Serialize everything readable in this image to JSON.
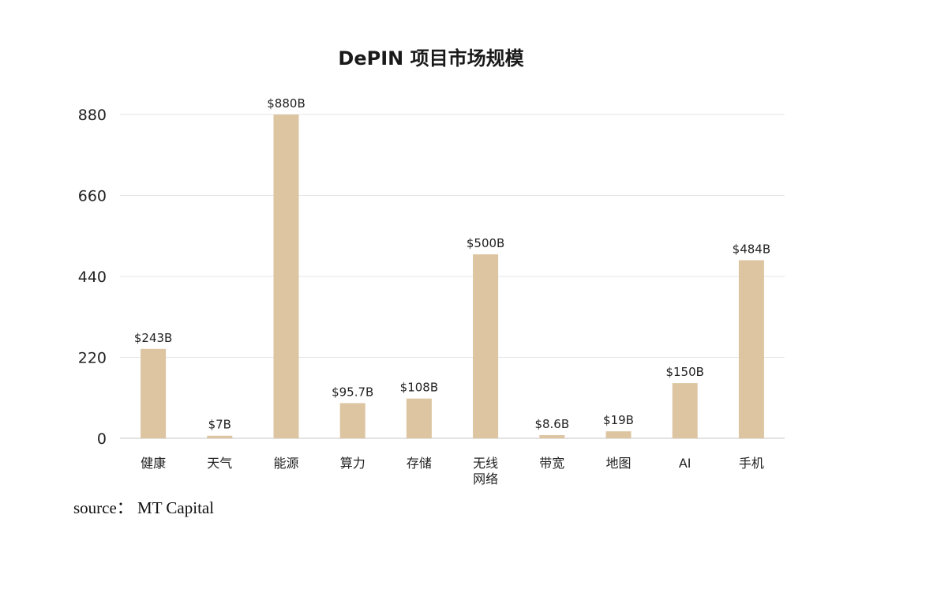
{
  "chart_data": {
    "type": "bar",
    "title": "DePIN 项目市场规模",
    "xlabel": "",
    "ylabel": "",
    "ylim": [
      0,
      880
    ],
    "yticks": [
      "0",
      "220",
      "440",
      "660",
      "880"
    ],
    "grid": true,
    "categories": [
      [
        "健康"
      ],
      [
        "天气"
      ],
      [
        "能源"
      ],
      [
        "算力"
      ],
      [
        "存储"
      ],
      [
        "无线",
        "网络"
      ],
      [
        "带宽"
      ],
      [
        "地图"
      ],
      [
        "AI"
      ],
      [
        "手机"
      ]
    ],
    "values": [
      243,
      7,
      880,
      95.7,
      108,
      500,
      8.6,
      19,
      150,
      484
    ],
    "data_labels": [
      "$243B",
      "$7B",
      "$880B",
      "$95.7B",
      "$108B",
      "$500B",
      "$8.6B",
      "$19B",
      "$150B",
      "$484B"
    ],
    "colors": {
      "bar": "#dcc5a0",
      "grid": "#e6e6e6",
      "axis": "#d9d9d9"
    }
  },
  "source": {
    "text": "source： MT Capital"
  }
}
